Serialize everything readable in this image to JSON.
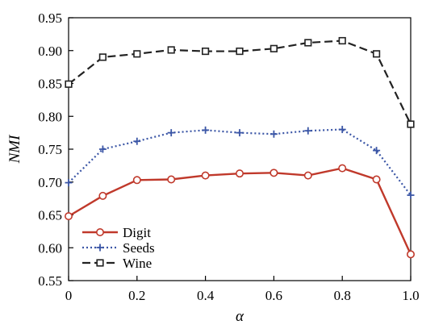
{
  "chart_data": {
    "type": "line",
    "xlabel": "α",
    "ylabel": "NMI",
    "xlim": [
      0,
      1
    ],
    "ylim": [
      0.55,
      0.95
    ],
    "x_ticks": [
      0,
      0.2,
      0.4,
      0.6,
      0.8,
      1.0
    ],
    "x_tick_labels": [
      "0",
      "0.2",
      "0.4",
      "0.6",
      "0.8",
      "1.0"
    ],
    "y_ticks": [
      0.55,
      0.6,
      0.65,
      0.7,
      0.75,
      0.8,
      0.85,
      0.9,
      0.95
    ],
    "y_tick_labels": [
      "0.55",
      "0.60",
      "0.65",
      "0.70",
      "0.75",
      "0.80",
      "0.85",
      "0.90",
      "0.95"
    ],
    "x": [
      0,
      0.1,
      0.2,
      0.3,
      0.4,
      0.5,
      0.6,
      0.7,
      0.8,
      0.9,
      1.0
    ],
    "series": [
      {
        "name": "Digit",
        "color": "#c0392b",
        "line_style": "solid",
        "marker": "circle",
        "values": [
          0.648,
          0.679,
          0.703,
          0.704,
          0.71,
          0.713,
          0.714,
          0.71,
          0.721,
          0.704,
          0.59
        ]
      },
      {
        "name": "Seeds",
        "color": "#3b56a6",
        "line_style": "dotted",
        "marker": "plus",
        "values": [
          0.699,
          0.75,
          0.762,
          0.775,
          0.779,
          0.775,
          0.773,
          0.778,
          0.78,
          0.748,
          0.68
        ]
      },
      {
        "name": "Wine",
        "color": "#222222",
        "line_style": "dashed",
        "marker": "square",
        "values": [
          0.849,
          0.89,
          0.895,
          0.901,
          0.899,
          0.899,
          0.903,
          0.912,
          0.915,
          0.895,
          0.788
        ]
      }
    ],
    "legend_position": "bottom-left",
    "grid": false
  }
}
